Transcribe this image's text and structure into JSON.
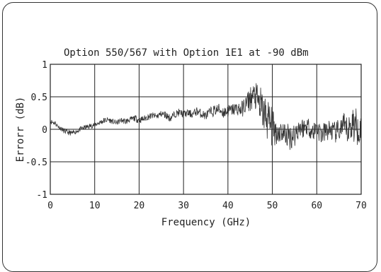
{
  "chart_data": {
    "type": "line",
    "title": "Option 550/567 with Option 1E1 at -90 dBm",
    "xlabel": "Frequency (GHz)",
    "ylabel": "Errorr (dB)",
    "xlim": [
      0,
      70
    ],
    "ylim": [
      -1,
      1
    ],
    "xticks": [
      "0",
      "10",
      "20",
      "30",
      "40",
      "50",
      "60",
      "70"
    ],
    "yticks": [
      "1",
      "0.5",
      "0",
      "-0.5",
      "-1"
    ],
    "grid": true,
    "legend": "none",
    "colors": {
      "line": "#333333",
      "grid": "#222222",
      "frame": "#333333"
    },
    "series": [
      {
        "x": [
          0,
          1,
          2,
          3,
          4,
          5,
          6,
          7,
          8,
          9,
          10,
          11,
          12,
          13,
          14,
          15,
          16,
          17,
          18,
          19,
          20,
          21,
          22,
          23,
          24,
          25,
          26,
          27,
          28,
          29,
          30,
          31,
          32,
          33,
          34,
          35,
          36,
          37,
          38,
          39,
          40,
          41,
          42,
          43,
          44,
          45,
          46,
          47,
          48,
          49,
          50,
          51,
          52,
          53,
          54,
          55,
          56,
          57,
          58,
          59,
          60,
          61,
          62,
          63,
          64,
          65,
          66,
          67,
          68,
          69,
          70
        ],
        "values": [
          0.12,
          0.1,
          0.03,
          -0.02,
          -0.05,
          -0.06,
          -0.03,
          0.01,
          0.03,
          0.05,
          0.07,
          0.1,
          0.13,
          0.15,
          0.12,
          0.1,
          0.14,
          0.12,
          0.15,
          0.17,
          0.14,
          0.16,
          0.19,
          0.21,
          0.2,
          0.24,
          0.22,
          0.17,
          0.23,
          0.26,
          0.23,
          0.25,
          0.23,
          0.28,
          0.24,
          0.21,
          0.26,
          0.29,
          0.31,
          0.26,
          0.28,
          0.3,
          0.32,
          0.3,
          0.38,
          0.47,
          0.52,
          0.4,
          0.25,
          0.15,
          0.02,
          -0.05,
          -0.03,
          -0.08,
          -0.12,
          -0.08,
          0.03,
          0.02,
          0.06,
          -0.05,
          0.03,
          -0.08,
          -0.04,
          0.0,
          -0.06,
          -0.02,
          0.05,
          -0.04,
          0.1,
          0.04,
          0.0
        ],
        "noise": [
          0.04,
          0.04,
          0.03,
          0.04,
          0.04,
          0.04,
          0.03,
          0.04,
          0.04,
          0.04,
          0.04,
          0.04,
          0.05,
          0.04,
          0.04,
          0.04,
          0.04,
          0.05,
          0.04,
          0.05,
          0.05,
          0.05,
          0.05,
          0.05,
          0.05,
          0.05,
          0.06,
          0.06,
          0.05,
          0.06,
          0.06,
          0.06,
          0.06,
          0.07,
          0.07,
          0.07,
          0.08,
          0.09,
          0.09,
          0.1,
          0.1,
          0.1,
          0.11,
          0.12,
          0.15,
          0.2,
          0.2,
          0.3,
          0.32,
          0.35,
          0.3,
          0.2,
          0.18,
          0.2,
          0.2,
          0.2,
          0.18,
          0.16,
          0.14,
          0.16,
          0.16,
          0.17,
          0.16,
          0.16,
          0.17,
          0.18,
          0.2,
          0.22,
          0.3,
          0.3,
          0.18
        ]
      }
    ]
  }
}
